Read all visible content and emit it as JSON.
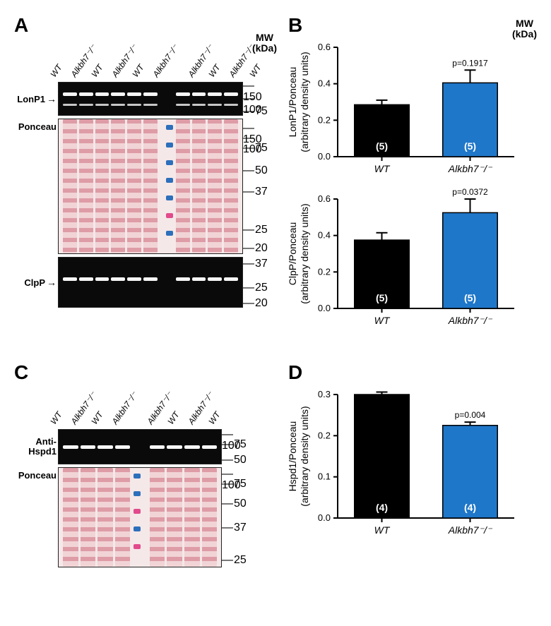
{
  "labels": {
    "A": "A",
    "B": "B",
    "C": "C",
    "D": "D",
    "mw_header": "MW\n(kDa)",
    "lonp1": "LonP1",
    "ponceau": "Ponceau",
    "clpp": "ClpP",
    "hspd1": "Anti-\nHspd1",
    "wt": "WT",
    "ko": "Alkbh7⁻/⁻"
  },
  "panelA": {
    "lanes": [
      "WT",
      "Alkbh7⁻/⁻",
      "WT",
      "Alkbh7⁻/⁻",
      "WT",
      "Alkbh7⁻/⁻",
      "",
      "Alkbh7⁻/⁻",
      "WT",
      "Alkbh7⁻/⁻",
      "WT"
    ],
    "mw_lonp1": [
      "150",
      "100",
      "75"
    ],
    "mw_ponceau": [
      "150",
      "100",
      "75",
      "50",
      "37",
      "25",
      "20"
    ],
    "mw_clpp": [
      "37",
      "25",
      "20"
    ],
    "marker_colors": [
      "#2c6fbb",
      "#2c6fbb",
      "#2c6fbb",
      "#2c6fbb",
      "#2c6fbb",
      "#e24a8c",
      "#2c6fbb"
    ]
  },
  "panelC": {
    "lanes": [
      "WT",
      "Alkbh7⁻/⁻",
      "WT",
      "Alkbh7⁻/⁻",
      "",
      "Alkbh7⁻/⁻",
      "WT",
      "Alkbh7⁻/⁻",
      "WT"
    ],
    "mw_hspd1": [
      "100",
      "75",
      "50"
    ],
    "mw_ponceau": [
      "100",
      "75",
      "50",
      "37",
      "25"
    ],
    "marker_colors": [
      "#2c6fbb",
      "#2c6fbb",
      "#e24a8c",
      "#2c6fbb",
      "#e24a8c"
    ]
  },
  "charts": {
    "lonp1": {
      "ytitle": "LonP1/Ponceau\n(arbitrary density units)",
      "ylim": [
        0,
        0.6
      ],
      "yticks": [
        0.0,
        0.2,
        0.4,
        0.6
      ],
      "bars": [
        {
          "label": "WT",
          "value": 0.285,
          "err": 0.025,
          "n": "(5)",
          "color": "#000000"
        },
        {
          "label": "Alkbh7⁻/⁻",
          "value": 0.405,
          "err": 0.07,
          "n": "(5)",
          "color": "#1f77c9"
        }
      ],
      "pval": "p=0.1917"
    },
    "clpp": {
      "ytitle": "ClpP/Ponceau\n(arbitrary density units)",
      "ylim": [
        0,
        0.6
      ],
      "yticks": [
        0.0,
        0.2,
        0.4,
        0.6
      ],
      "bars": [
        {
          "label": "WT",
          "value": 0.375,
          "err": 0.04,
          "n": "(5)",
          "color": "#000000"
        },
        {
          "label": "Alkbh7⁻/⁻",
          "value": 0.525,
          "err": 0.075,
          "n": "(5)",
          "color": "#1f77c9"
        }
      ],
      "pval": "p=0.0372"
    },
    "hspd1": {
      "ytitle": "Hspd1/Ponceau\n(arbitrary density units)",
      "ylim": [
        0,
        0.3
      ],
      "yticks": [
        0.0,
        0.1,
        0.2,
        0.3
      ],
      "bars": [
        {
          "label": "WT",
          "value": 0.315,
          "err": 0.01,
          "n": "(4)",
          "color": "#000000"
        },
        {
          "label": "Alkbh7⁻/⁻",
          "value": 0.225,
          "err": 0.008,
          "n": "(4)",
          "color": "#1f77c9"
        }
      ],
      "pval": "p=0.004"
    }
  },
  "style": {
    "axis_color": "#000000",
    "err_color": "#000000"
  }
}
